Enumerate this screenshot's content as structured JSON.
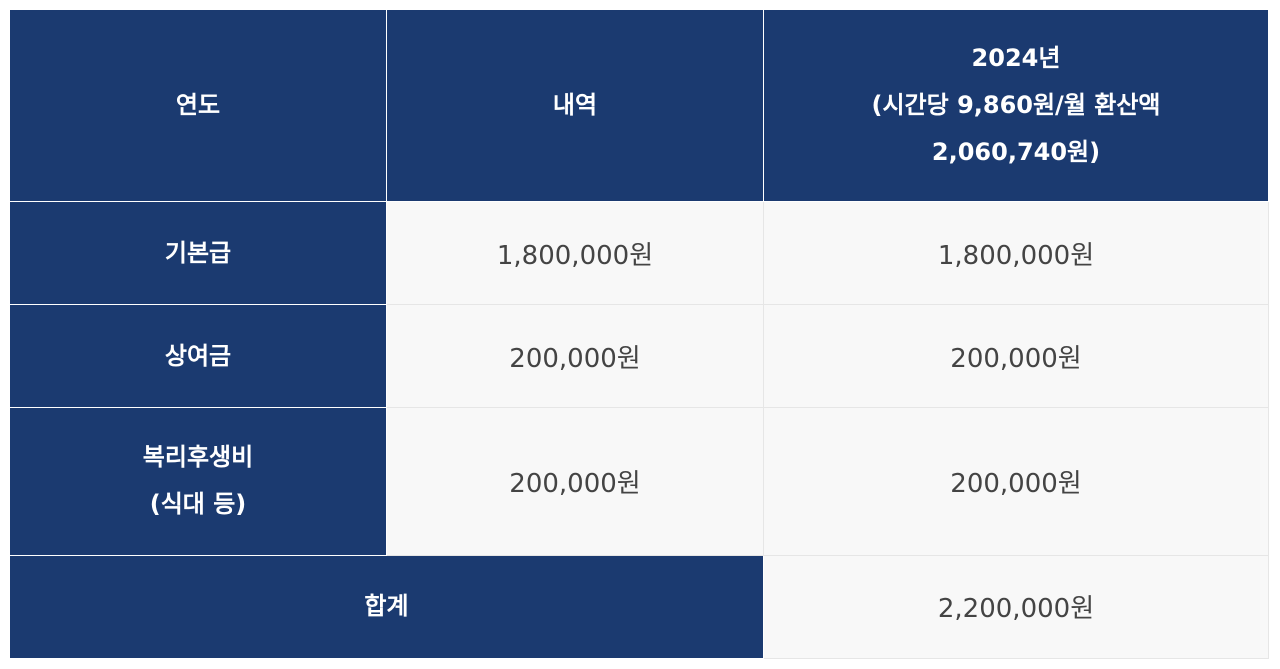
{
  "table": {
    "header": {
      "col1": "연도",
      "col2": "내역",
      "col3_lines": [
        "2024년",
        "(시간당 9,860원/월 환산액",
        "2,060,740원)"
      ]
    },
    "rows": [
      {
        "label_lines": [
          "기본급"
        ],
        "value_2": "1,800,000원",
        "value_3": "1,800,000원"
      },
      {
        "label_lines": [
          "상여금"
        ],
        "value_2": "200,000원",
        "value_3": "200,000원"
      },
      {
        "label_lines": [
          "복리후생비",
          "(식대 등)"
        ],
        "value_2": "200,000원",
        "value_3": "200,000원"
      }
    ],
    "total": {
      "label": "합계",
      "value": "2,200,000원"
    }
  },
  "colors": {
    "header_bg": "#1b3a70",
    "cell_bg": "#f8f8f8",
    "cell_text": "#444444",
    "border": "#e6e6e6"
  }
}
